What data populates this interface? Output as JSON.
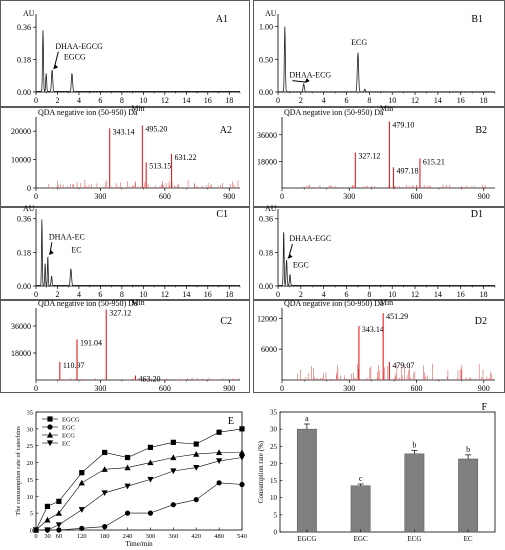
{
  "chart_data": [
    {
      "id": "A1",
      "type": "line",
      "panel_label": "A1",
      "ylabel": "AU",
      "xlabel": "Min",
      "xlim": [
        0,
        19
      ],
      "ylim": [
        0,
        0.4
      ],
      "xticks": [
        0,
        2,
        4,
        6,
        8,
        10,
        12,
        14,
        16,
        18
      ],
      "yticks": [
        0.0,
        0.18,
        0.36
      ],
      "ytick_labels": [
        "0.00",
        "0.18",
        "0.36"
      ],
      "peaks": [
        {
          "x": 0.65,
          "y": 0.34,
          "w": 0.06
        },
        {
          "x": 0.95,
          "y": 0.1,
          "w": 0.06
        },
        {
          "x": 1.5,
          "y": 0.12,
          "w": 0.08
        },
        {
          "x": 3.35,
          "y": 0.1,
          "w": 0.08
        }
      ],
      "annotations": [
        {
          "text": "DHAA-EGCG",
          "x": 1.5,
          "y": 0.12,
          "tx": 1.8,
          "ty": 0.24
        },
        {
          "text": "EGCG",
          "x": 3.35,
          "y": 0.1,
          "tx": 2.6,
          "ty": 0.18
        }
      ]
    },
    {
      "id": "B1",
      "type": "line",
      "panel_label": "B1",
      "ylabel": "AU",
      "xlabel": "Min",
      "xlim": [
        0,
        19
      ],
      "ylim": [
        0,
        1.1
      ],
      "xticks": [
        0,
        2,
        4,
        6,
        8,
        10,
        12,
        14,
        16,
        18
      ],
      "yticks": [
        0.0,
        0.5,
        1.0
      ],
      "ytick_labels": [
        "0.00",
        "0.50",
        "1.00"
      ],
      "peaks": [
        {
          "x": 0.6,
          "y": 1.0,
          "w": 0.06
        },
        {
          "x": 2.25,
          "y": 0.12,
          "w": 0.08
        },
        {
          "x": 7.0,
          "y": 0.6,
          "w": 0.08
        },
        {
          "x": 7.6,
          "y": 0.04,
          "w": 0.06
        }
      ],
      "annotations": [
        {
          "text": "ECG",
          "x": 7.0,
          "y": 0.6,
          "tx": 6.4,
          "ty": 0.72
        },
        {
          "text": "DHAA-ECG",
          "x": 2.25,
          "y": 0.12,
          "tx": 1.0,
          "ty": 0.22
        }
      ]
    },
    {
      "id": "A2",
      "type": "bar",
      "panel_label": "A2",
      "title": "QDA negative ion (50-950) Da",
      "xlim": [
        0,
        950
      ],
      "ylim": [
        0,
        25000
      ],
      "xticks": [
        0,
        300,
        600,
        900
      ],
      "yticks": [
        0,
        10000,
        20000
      ],
      "ytick_labels": [
        "0",
        "10000",
        "20000"
      ],
      "main_peaks": [
        {
          "x": 343.14,
          "y": 21000,
          "label": "343.14"
        },
        {
          "x": 495.2,
          "y": 22000,
          "label": "495.20"
        },
        {
          "x": 513.15,
          "y": 9000,
          "label": "513.15"
        },
        {
          "x": 631.22,
          "y": 12000,
          "label": "631.22"
        }
      ],
      "noise_seed": 11,
      "noise_max": 3000
    },
    {
      "id": "B2",
      "type": "bar",
      "panel_label": "B2",
      "title": "QDA negative ion (50-950) Da",
      "xlim": [
        0,
        950
      ],
      "ylim": [
        0,
        48000
      ],
      "xticks": [
        0,
        300,
        600,
        900
      ],
      "yticks": [
        18000,
        36000
      ],
      "ytick_labels": [
        "18000",
        "36000"
      ],
      "main_peaks": [
        {
          "x": 327.12,
          "y": 24000,
          "label": "327.12"
        },
        {
          "x": 479.1,
          "y": 45000,
          "label": "479.10"
        },
        {
          "x": 497.18,
          "y": 14000,
          "label": "497.18"
        },
        {
          "x": 615.21,
          "y": 20000,
          "label": "615.21"
        }
      ],
      "noise_seed": 23,
      "noise_max": 2500
    },
    {
      "id": "C1",
      "type": "line",
      "panel_label": "C1",
      "ylabel": "AU",
      "xlabel": "Min",
      "xlim": [
        0,
        19
      ],
      "ylim": [
        0,
        0.38
      ],
      "xticks": [
        0,
        2,
        4,
        6,
        8,
        10,
        12,
        14,
        16,
        18
      ],
      "yticks": [
        0.0,
        0.18,
        0.36
      ],
      "ytick_labels": [
        "0.00",
        "0.18",
        "0.36"
      ],
      "peaks": [
        {
          "x": 0.55,
          "y": 0.36,
          "w": 0.05
        },
        {
          "x": 0.85,
          "y": 0.12,
          "w": 0.05
        },
        {
          "x": 1.1,
          "y": 0.16,
          "w": 0.05
        },
        {
          "x": 1.45,
          "y": 0.05,
          "w": 0.06
        },
        {
          "x": 3.25,
          "y": 0.09,
          "w": 0.08
        }
      ],
      "annotations": [
        {
          "text": "DHAA-EC",
          "x": 1.1,
          "y": 0.16,
          "tx": 1.2,
          "ty": 0.25
        },
        {
          "text": "EC",
          "x": 3.25,
          "y": 0.09,
          "tx": 3.3,
          "ty": 0.18
        }
      ]
    },
    {
      "id": "D1",
      "type": "line",
      "panel_label": "D1",
      "ylabel": "AU",
      "xlabel": "Min",
      "xlim": [
        0,
        19
      ],
      "ylim": [
        0,
        0.38
      ],
      "xticks": [
        0,
        2,
        4,
        6,
        8,
        10,
        12,
        14,
        16,
        18
      ],
      "yticks": [
        0.0,
        0.18,
        0.36
      ],
      "ytick_labels": [
        "0.00",
        "0.18",
        "0.36"
      ],
      "peaks": [
        {
          "x": 0.5,
          "y": 0.3,
          "w": 0.05
        },
        {
          "x": 0.75,
          "y": 0.14,
          "w": 0.06
        },
        {
          "x": 1.05,
          "y": 0.06,
          "w": 0.06
        }
      ],
      "annotations": [
        {
          "text": "DHAA-EGC",
          "x": 0.75,
          "y": 0.14,
          "tx": 1.0,
          "ty": 0.24
        },
        {
          "text": "EGC",
          "x": 1.05,
          "y": 0.06,
          "tx": 1.3,
          "ty": 0.1
        }
      ]
    },
    {
      "id": "C2",
      "type": "bar",
      "panel_label": "C2",
      "title": "QDA negative ion (50-950) Da",
      "xlim": [
        0,
        950
      ],
      "ylim": [
        0,
        48000
      ],
      "xticks": [
        0,
        300,
        600,
        900
      ],
      "yticks": [
        18000,
        36000
      ],
      "ytick_labels": [
        "18000",
        "36000"
      ],
      "main_peaks": [
        {
          "x": 110.97,
          "y": 12000,
          "label": "110.97"
        },
        {
          "x": 191.04,
          "y": 27000,
          "label": "191.04"
        },
        {
          "x": 327.12,
          "y": 47000,
          "label": "327.12"
        },
        {
          "x": 463.2,
          "y": 3000,
          "label": "463.20"
        }
      ],
      "noise_seed": 37,
      "noise_max": 1500
    },
    {
      "id": "D2",
      "type": "bar",
      "panel_label": "D2",
      "title": "QDA negative ion (50-950) Da",
      "xlim": [
        0,
        950
      ],
      "ylim": [
        0,
        14000
      ],
      "xticks": [
        0,
        300,
        600,
        900
      ],
      "yticks": [
        6000,
        12000
      ],
      "ytick_labels": [
        "6000",
        "12000"
      ],
      "main_peaks": [
        {
          "x": 343.14,
          "y": 10500,
          "label": "343.14"
        },
        {
          "x": 451.29,
          "y": 13000,
          "label": "451.29"
        },
        {
          "x": 479.07,
          "y": 3500,
          "label": "479.07"
        }
      ],
      "noise_seed": 53,
      "noise_max": 3200
    },
    {
      "id": "E",
      "type": "line",
      "panel_label": "E",
      "xlabel": "Time/min",
      "ylabel": "The consumption rate of catechins",
      "xlim": [
        0,
        540
      ],
      "ylim": [
        0,
        35
      ],
      "xticks": [
        0,
        30,
        60,
        120,
        180,
        240,
        300,
        360,
        420,
        480,
        540
      ],
      "yticks": [
        0,
        5,
        10,
        15,
        20,
        25,
        30,
        35
      ],
      "series": [
        {
          "name": "EGCG",
          "marker": "square",
          "x": [
            0,
            30,
            60,
            120,
            180,
            240,
            300,
            360,
            420,
            480,
            540
          ],
          "y": [
            0,
            7,
            8.5,
            17,
            23,
            21.5,
            24.5,
            26,
            25.5,
            29,
            30
          ]
        },
        {
          "name": "EGC",
          "marker": "circle",
          "x": [
            0,
            30,
            60,
            120,
            180,
            240,
            300,
            360,
            420,
            480,
            540
          ],
          "y": [
            0,
            0,
            0,
            0.5,
            1,
            5,
            5,
            7.5,
            9,
            14,
            13.5
          ]
        },
        {
          "name": "ECG",
          "marker": "triangle-up",
          "x": [
            0,
            30,
            60,
            120,
            180,
            240,
            300,
            360,
            420,
            480,
            540
          ],
          "y": [
            0,
            3,
            5,
            14,
            18,
            18.5,
            20,
            21.5,
            22.5,
            23,
            23
          ]
        },
        {
          "name": "EC",
          "marker": "triangle-down",
          "x": [
            0,
            30,
            60,
            120,
            180,
            240,
            300,
            360,
            420,
            480,
            540
          ],
          "y": [
            0,
            0,
            1.5,
            6,
            11,
            13,
            15,
            17.5,
            18.5,
            20.5,
            21.5
          ]
        }
      ],
      "legend": "top-left"
    },
    {
      "id": "F",
      "type": "bar",
      "panel_label": "F",
      "ylabel": "Consumption rate (%)",
      "categories": [
        "EGCG",
        "EGC",
        "ECG",
        "EC"
      ],
      "values": [
        30,
        13.5,
        22.8,
        21.3
      ],
      "errors": [
        1.5,
        0.5,
        1.0,
        1.2
      ],
      "letters": [
        "a",
        "c",
        "b",
        "b"
      ],
      "ylim": [
        0,
        35
      ],
      "yticks": [
        0,
        5,
        10,
        15,
        20,
        25,
        30,
        35
      ],
      "bar_color": "#7f7f7f"
    }
  ]
}
